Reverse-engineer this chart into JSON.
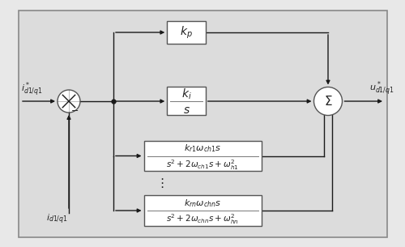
{
  "bg_color": "#e8e8e8",
  "box_color": "#ffffff",
  "box_edge": "#555555",
  "line_color": "#1a1a1a",
  "text_color": "#222222",
  "figsize": [
    5.0,
    3.05
  ],
  "dpi": 100,
  "labels": {
    "input_ref": "$i^*_{d1/q1}$",
    "input_fb": "$i_{d1/q1}$",
    "output": "$u^*_{d1/q1}$",
    "kp": "$k_p$",
    "ki_num": "$k_i$",
    "ki_den": "$s$",
    "box1_num": "$k_{r1}\\omega_{ch1}s$",
    "box1_den": "$s^2+2\\omega_{ch1}s+\\omega^2_{h1}$",
    "box2_num": "$k_{rn}\\omega_{chn}s$",
    "box2_den": "$s^2+2\\omega_{chn}s+\\omega^2_{hn}$",
    "dots": "$\\vdots$",
    "minus": "$-$",
    "sigma": "$\\Sigma$"
  },
  "xlim": [
    0,
    10
  ],
  "ylim": [
    0,
    6.1
  ]
}
